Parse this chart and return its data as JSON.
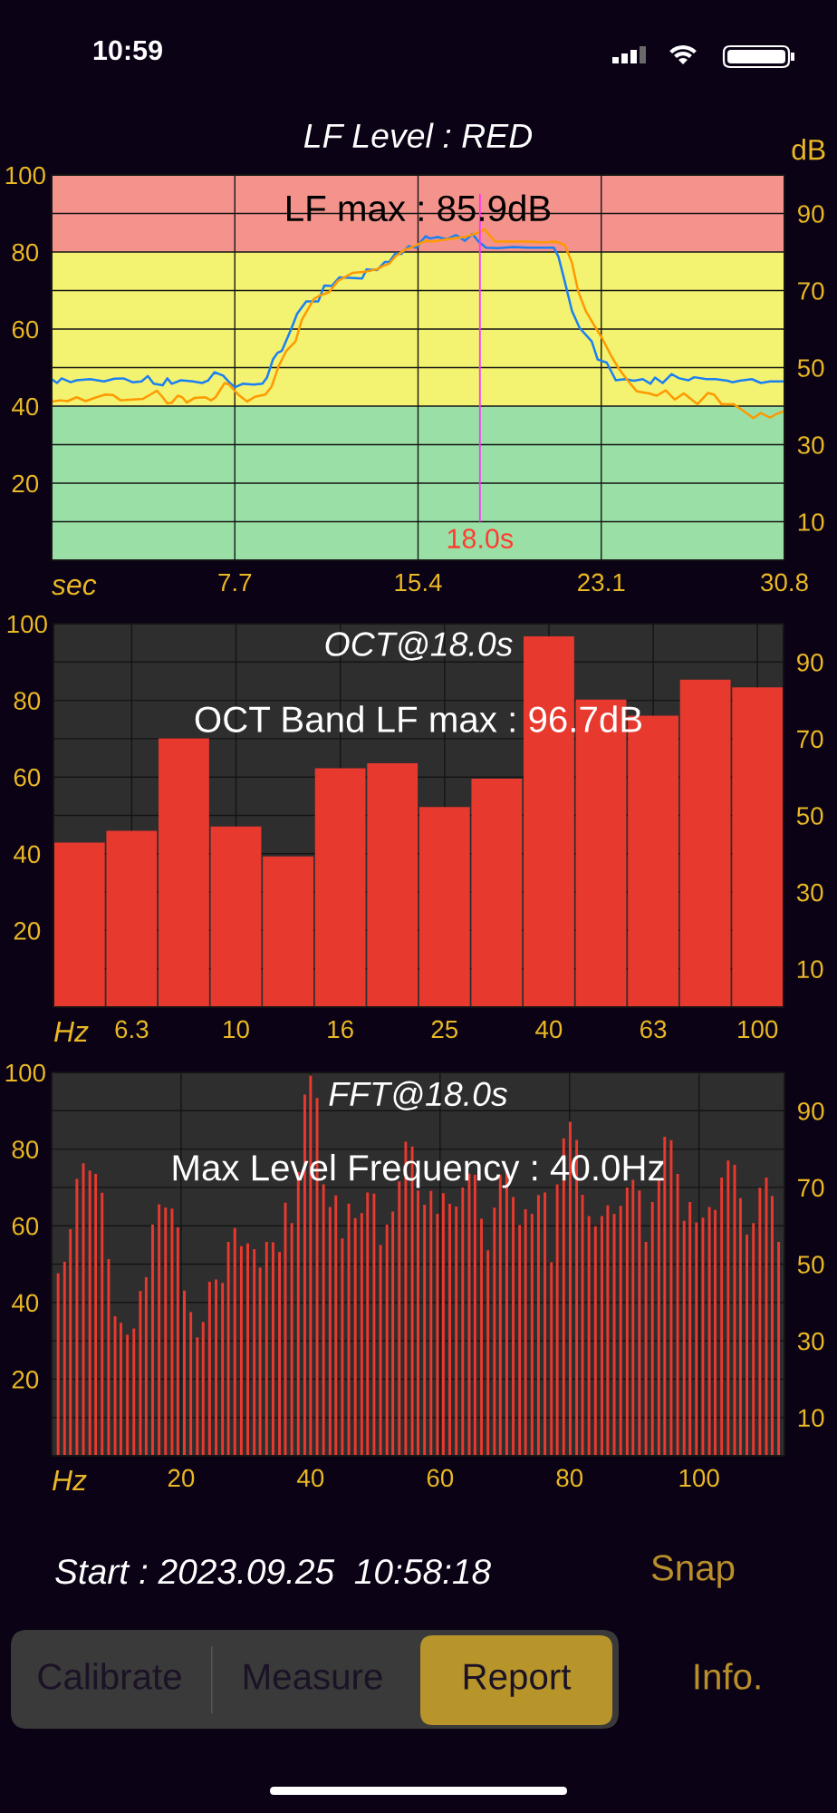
{
  "chart_data": [
    {
      "type": "line",
      "title": "LF Level : RED",
      "xlabel": "sec",
      "y2label": "dB",
      "annotations": [
        "LF max : 85.9dB"
      ],
      "series": [
        {
          "color": "#1a7ff5",
          "x": [
            0,
            0.23,
            0.42,
            0.8,
            1.05,
            1.62,
            2.2,
            2.64,
            3.02,
            3.4,
            3.78,
            4.04,
            4.29,
            4.67,
            4.86,
            5.05,
            5.43,
            5.94,
            6.32,
            6.57,
            6.85,
            7.21,
            7.46,
            7.71,
            8.03,
            8.48,
            8.86,
            9.05,
            9.3,
            9.49,
            9.68,
            10.06,
            10.32,
            10.7,
            11.21,
            11.46,
            11.78,
            12.09,
            12.54,
            13.05,
            13.24,
            13.68,
            14.0,
            14.19,
            14.44,
            14.7,
            15.01,
            15.33,
            15.52,
            15.72,
            15.91,
            16.22,
            16.61,
            16.99,
            17.37,
            17.69,
            17.94,
            18.26,
            18.76,
            19.4,
            20.03,
            20.67,
            21.11,
            21.3,
            21.56,
            21.87,
            22.19,
            22.7,
            22.95,
            23.33,
            23.71,
            24.09,
            24.47,
            24.85,
            25.17,
            25.36,
            25.68,
            26.06,
            26.38,
            26.76,
            27.01,
            27.52,
            27.9,
            28.41,
            28.6,
            28.92,
            29.43,
            29.81,
            30.19,
            30.8
          ],
          "values": [
            47.0,
            46.0,
            47.2,
            46.2,
            46.7,
            47.0,
            46.4,
            47.1,
            47.2,
            46.2,
            46.4,
            47.8,
            45.8,
            45.4,
            47.2,
            45.8,
            46.7,
            46.4,
            46.0,
            46.6,
            48.8,
            47.9,
            46.2,
            44.9,
            45.8,
            45.6,
            45.8,
            47.4,
            52.1,
            53.8,
            54.4,
            59.9,
            64.0,
            67.2,
            67.2,
            71.3,
            71.2,
            73.4,
            73.3,
            73.1,
            75.5,
            75.3,
            77.4,
            77.4,
            79.6,
            79.5,
            81.5,
            81.1,
            82.7,
            84.1,
            83.5,
            83.9,
            83.3,
            84.4,
            82.9,
            84.7,
            82.7,
            81.1,
            81.0,
            81.3,
            81.1,
            81.1,
            81.1,
            78.8,
            72.5,
            64.7,
            60.3,
            56.8,
            52.1,
            51.3,
            46.7,
            47.0,
            46.6,
            47.0,
            45.8,
            47.4,
            46.0,
            48.3,
            47.2,
            46.7,
            47.5,
            47.0,
            47.0,
            46.6,
            46.2,
            46.6,
            47.0,
            46.0,
            46.4,
            46.4
          ]
        },
        {
          "color": "#ff9900",
          "x": [
            0,
            0.36,
            0.67,
            1.05,
            1.43,
            1.88,
            2.26,
            2.58,
            2.9,
            3.4,
            3.84,
            4.16,
            4.42,
            4.67,
            4.86,
            5.05,
            5.3,
            5.49,
            5.68,
            6.0,
            6.45,
            6.7,
            6.89,
            7.27,
            7.46,
            7.84,
            8.22,
            8.54,
            8.98,
            9.24,
            9.55,
            9.87,
            10.25,
            10.51,
            11.02,
            11.27,
            11.65,
            12.03,
            12.66,
            13.17,
            13.68,
            13.93,
            14.19,
            14.44,
            14.82,
            15.08,
            15.71,
            16.0,
            16.61,
            17.37,
            17.88,
            18.19,
            18.64,
            19.4,
            20.03,
            20.67,
            21.17,
            21.56,
            21.87,
            22.13,
            22.45,
            22.83,
            23.14,
            23.46,
            23.84,
            24.22,
            24.6,
            25.11,
            25.43,
            25.81,
            26.19,
            26.57,
            27.14,
            27.58,
            27.84,
            28.16,
            28.66,
            29.05,
            29.49,
            29.81,
            30.19,
            30.45,
            30.8
          ],
          "values": [
            41.2,
            41.5,
            41.3,
            42.3,
            41.3,
            42.3,
            43.0,
            42.9,
            41.5,
            41.7,
            41.9,
            43.0,
            44.0,
            42.3,
            40.7,
            40.9,
            42.7,
            42.3,
            40.9,
            42.1,
            42.3,
            41.5,
            42.3,
            46.0,
            45.6,
            43.0,
            41.2,
            42.4,
            43.0,
            45.0,
            50.5,
            54.4,
            56.8,
            62.3,
            67.8,
            68.7,
            69.5,
            72.5,
            74.6,
            74.9,
            75.5,
            76.4,
            77.0,
            78.8,
            80.5,
            81.1,
            82.9,
            82.7,
            83.3,
            83.9,
            84.9,
            85.9,
            82.7,
            82.7,
            82.7,
            82.5,
            82.7,
            81.9,
            77.2,
            69.8,
            64.7,
            60.7,
            57.6,
            53.7,
            49.7,
            46.6,
            43.8,
            43.3,
            42.7,
            44.1,
            41.7,
            43.3,
            40.5,
            43.4,
            43.0,
            40.5,
            40.5,
            38.9,
            36.9,
            38.2,
            37.0,
            37.9,
            38.7
          ]
        }
      ],
      "xlim": [
        0,
        30.8
      ],
      "xticks": [
        7.7,
        15.4,
        23.1,
        30.8
      ],
      "ylim": [
        0,
        100
      ],
      "yticks": [
        20,
        40,
        60,
        80,
        100
      ],
      "y2lim": [
        0,
        100
      ],
      "y2ticks": [
        10,
        30,
        50,
        70,
        90
      ],
      "grid": true,
      "bands": [
        {
          "axis": "y",
          "from": 80,
          "to": 100,
          "color": "#f4928c"
        },
        {
          "axis": "y",
          "from": 40,
          "to": 80,
          "color": "#f3f271"
        },
        {
          "axis": "y",
          "from": 0,
          "to": 40,
          "color": "#9ae0a6"
        }
      ],
      "ref_lines": [
        {
          "axis": "x",
          "value": 18.0,
          "label": "18.0s",
          "color": "#ff33ff"
        }
      ]
    },
    {
      "type": "bar",
      "title": "OCT@18.0s",
      "xlabel": "Hz",
      "annotations": [
        "OCT Band LF max : 96.7dB"
      ],
      "categories": [
        null,
        "6.3",
        null,
        "10",
        null,
        "16",
        null,
        "25",
        null,
        "40",
        null,
        "63",
        null,
        "100"
      ],
      "values": [
        42.9,
        46.0,
        70.1,
        47.1,
        39.3,
        62.3,
        63.6,
        52.2,
        59.6,
        96.7,
        80.2,
        76.0,
        85.4,
        83.4
      ],
      "color": "#e8392f",
      "ylim": [
        0,
        100
      ],
      "yticks": [
        20,
        40,
        60,
        80,
        100
      ],
      "y2lim": [
        0,
        100
      ],
      "y2ticks": [
        10,
        30,
        50,
        70,
        90
      ],
      "grid": true
    },
    {
      "type": "bar",
      "title": "FFT@18.0s",
      "xlabel": "Hz",
      "annotations": [
        "Max Level Frequency : 40.0Hz"
      ],
      "x": [
        1.0,
        2.0,
        2.9,
        3.9,
        4.9,
        5.9,
        6.8,
        7.8,
        8.8,
        9.8,
        10.7,
        11.7,
        12.7,
        13.7,
        14.6,
        15.6,
        16.6,
        17.6,
        18.6,
        19.5,
        20.5,
        21.5,
        22.5,
        23.4,
        24.4,
        25.4,
        26.4,
        27.3,
        28.3,
        29.3,
        30.3,
        31.3,
        32.2,
        33.2,
        34.2,
        35.2,
        36.1,
        37.1,
        38.1,
        39.1,
        40.0,
        41.0,
        42.0,
        43.0,
        43.9,
        44.9,
        45.9,
        46.9,
        47.9,
        48.8,
        49.8,
        50.8,
        51.8,
        52.7,
        53.7,
        54.7,
        55.7,
        56.6,
        57.6,
        58.6,
        59.6,
        60.5,
        61.5,
        62.5,
        63.5,
        64.5,
        65.4,
        66.4,
        67.4,
        68.4,
        69.3,
        70.3,
        71.3,
        72.3,
        73.2,
        74.2,
        75.2,
        76.2,
        77.2,
        78.1,
        79.1,
        80.1,
        81.1,
        82.0,
        83.0,
        84.0,
        85.0,
        85.9,
        86.9,
        87.9,
        88.9,
        89.8,
        90.8,
        91.8,
        92.8,
        93.8,
        94.7,
        95.7,
        96.7,
        97.7,
        98.6,
        99.6,
        100.6,
        101.6,
        102.5,
        103.5,
        104.5,
        105.5,
        106.4,
        107.4,
        108.4,
        109.4,
        110.4,
        111.3,
        112.3
      ],
      "values": [
        47.6,
        50.6,
        59.1,
        72.2,
        76.3,
        74.4,
        73.5,
        68.6,
        51.3,
        36.4,
        34.7,
        31.6,
        33.2,
        43.0,
        46.6,
        60.3,
        65.6,
        64.8,
        64.5,
        59.6,
        43.1,
        37.5,
        30.9,
        34.9,
        45.4,
        46.0,
        45.1,
        55.8,
        59.4,
        54.7,
        55.4,
        53.9,
        49.1,
        55.8,
        55.7,
        53.2,
        66.0,
        60.7,
        74.0,
        94.2,
        99.2,
        93.3,
        70.8,
        64.9,
        67.9,
        56.7,
        65.8,
        62.0,
        63.3,
        68.7,
        68.4,
        55.0,
        60.3,
        63.7,
        71.6,
        81.9,
        80.7,
        69.2,
        65.5,
        69.1,
        63.1,
        68.5,
        65.7,
        65.0,
        70.0,
        73.6,
        73.3,
        61.8,
        53.6,
        64.7,
        73.2,
        75.2,
        67.5,
        60.2,
        64.3,
        63.1,
        68.0,
        68.7,
        50.5,
        70.8,
        82.8,
        87.1,
        82.4,
        68.1,
        62.5,
        59.9,
        62.5,
        65.3,
        63.1,
        65.2,
        70.0,
        72.0,
        69.2,
        55.8,
        66.2,
        72.0,
        83.2,
        82.3,
        73.5,
        61.3,
        66.2,
        60.9,
        62.1,
        64.9,
        64.1,
        72.6,
        77.0,
        75.9,
        67.2,
        57.7,
        60.7,
        69.9,
        72.6,
        67.8,
        55.8
      ],
      "color": "#e8392f",
      "xlim": [
        0,
        113.2
      ],
      "xticks": [
        20,
        40,
        60,
        80,
        100
      ],
      "ylim": [
        0,
        100
      ],
      "yticks": [
        20,
        40,
        60,
        80,
        100
      ],
      "y2lim": [
        0,
        100
      ],
      "y2ticks": [
        10,
        30,
        50,
        70,
        90
      ],
      "grid": true
    },
    {
      "type": "other",
      "annotations": [
        "10:59",
        "Start : 2023.09.25  10:58:18",
        "Snap",
        "Calibrate",
        "Measure",
        "Report",
        "Info."
      ]
    }
  ]
}
